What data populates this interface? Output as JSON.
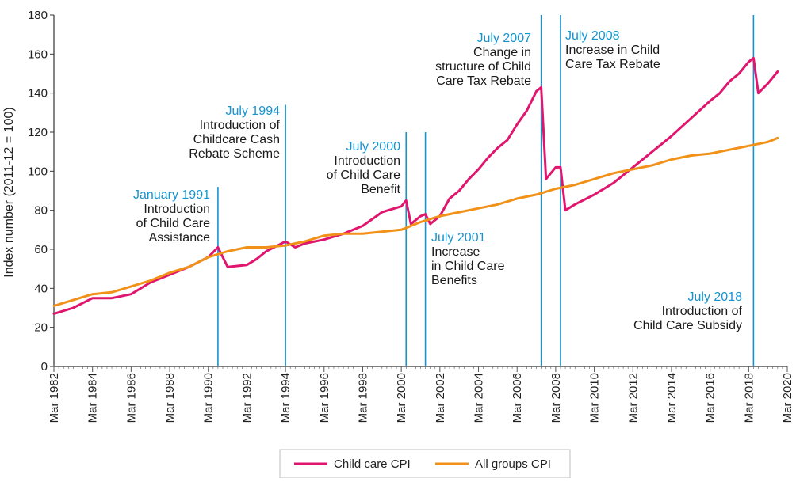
{
  "chart_data": {
    "type": "line",
    "title": "",
    "ylabel": "Index number (2011-12 = 100)",
    "xlabel": "",
    "ylim": [
      0,
      180
    ],
    "xlim": [
      "1982-03",
      "2020-03"
    ],
    "y_ticks": [
      "0",
      "20",
      "40",
      "60",
      "80",
      "100",
      "120",
      "140",
      "160",
      "180"
    ],
    "x_ticks": [
      "Mar 1982",
      "Mar 1984",
      "Mar 1986",
      "Mar 1988",
      "Mar 1990",
      "Mar 1992",
      "Mar 1994",
      "Mar 1996",
      "Mar 1998",
      "Mar 2000",
      "Mar 2002",
      "Mar 2004",
      "Mar 2006",
      "Mar 2008",
      "Mar 2010",
      "Mar 2012",
      "Mar 2014",
      "Mar 2016",
      "Mar 2018",
      "Mar 2020"
    ],
    "grid": false,
    "legend_position": "bottom",
    "series": [
      {
        "name": "Child care CPI",
        "color": "#e0166e",
        "points": [
          [
            "1982-03",
            27
          ],
          [
            "1983-03",
            30
          ],
          [
            "1984-03",
            35
          ],
          [
            "1985-03",
            35
          ],
          [
            "1986-03",
            37
          ],
          [
            "1987-03",
            43
          ],
          [
            "1988-03",
            47
          ],
          [
            "1989-03",
            51
          ],
          [
            "1990-03",
            56
          ],
          [
            "1990-09",
            61
          ],
          [
            "1991-03",
            51
          ],
          [
            "1992-03",
            52
          ],
          [
            "1992-09",
            55
          ],
          [
            "1993-03",
            59
          ],
          [
            "1994-03",
            64
          ],
          [
            "1994-09",
            61
          ],
          [
            "1995-03",
            63
          ],
          [
            "1996-03",
            65
          ],
          [
            "1997-03",
            68
          ],
          [
            "1998-03",
            72
          ],
          [
            "1999-03",
            79
          ],
          [
            "2000-03",
            82
          ],
          [
            "2000-06",
            85
          ],
          [
            "2000-09",
            73
          ],
          [
            "2001-03",
            77
          ],
          [
            "2001-06",
            78
          ],
          [
            "2001-09",
            73
          ],
          [
            "2002-03",
            77
          ],
          [
            "2002-09",
            86
          ],
          [
            "2003-03",
            90
          ],
          [
            "2003-09",
            96
          ],
          [
            "2004-03",
            101
          ],
          [
            "2004-09",
            107
          ],
          [
            "2005-03",
            112
          ],
          [
            "2005-09",
            116
          ],
          [
            "2006-03",
            124
          ],
          [
            "2006-09",
            131
          ],
          [
            "2007-03",
            141
          ],
          [
            "2007-06",
            143
          ],
          [
            "2007-09",
            96
          ],
          [
            "2008-03",
            102
          ],
          [
            "2008-06",
            102
          ],
          [
            "2008-09",
            80
          ],
          [
            "2009-03",
            83
          ],
          [
            "2010-03",
            88
          ],
          [
            "2011-03",
            94
          ],
          [
            "2012-03",
            102
          ],
          [
            "2013-03",
            110
          ],
          [
            "2014-03",
            118
          ],
          [
            "2015-03",
            127
          ],
          [
            "2016-03",
            136
          ],
          [
            "2016-09",
            140
          ],
          [
            "2017-03",
            146
          ],
          [
            "2017-09",
            150
          ],
          [
            "2018-03",
            156
          ],
          [
            "2018-06",
            158
          ],
          [
            "2018-09",
            140
          ],
          [
            "2019-03",
            145
          ],
          [
            "2019-09",
            151
          ]
        ]
      },
      {
        "name": "All groups CPI",
        "color": "#f29118",
        "points": [
          [
            "1982-03",
            31
          ],
          [
            "1983-03",
            34
          ],
          [
            "1984-03",
            37
          ],
          [
            "1985-03",
            38
          ],
          [
            "1986-03",
            41
          ],
          [
            "1987-03",
            44
          ],
          [
            "1988-03",
            48
          ],
          [
            "1989-03",
            51
          ],
          [
            "1990-03",
            56
          ],
          [
            "1991-03",
            59
          ],
          [
            "1992-03",
            61
          ],
          [
            "1993-03",
            61
          ],
          [
            "1994-03",
            62
          ],
          [
            "1995-03",
            64
          ],
          [
            "1996-03",
            67
          ],
          [
            "1997-03",
            68
          ],
          [
            "1998-03",
            68
          ],
          [
            "1999-03",
            69
          ],
          [
            "2000-03",
            70
          ],
          [
            "2001-03",
            74
          ],
          [
            "2002-03",
            77
          ],
          [
            "2003-03",
            79
          ],
          [
            "2004-03",
            81
          ],
          [
            "2005-03",
            83
          ],
          [
            "2006-03",
            86
          ],
          [
            "2007-03",
            88
          ],
          [
            "2008-03",
            91
          ],
          [
            "2009-03",
            93
          ],
          [
            "2010-03",
            96
          ],
          [
            "2011-03",
            99
          ],
          [
            "2012-03",
            101
          ],
          [
            "2013-03",
            103
          ],
          [
            "2014-03",
            106
          ],
          [
            "2015-03",
            108
          ],
          [
            "2016-03",
            109
          ],
          [
            "2017-03",
            111
          ],
          [
            "2018-03",
            113
          ],
          [
            "2019-03",
            115
          ],
          [
            "2019-09",
            117
          ]
        ]
      }
    ],
    "event_lines": {
      "color": "#1594cf",
      "events": [
        {
          "date": "1990-09",
          "top": 92
        },
        {
          "date": "1994-03",
          "top": 134
        },
        {
          "date": "2000-06",
          "top": 120
        },
        {
          "date": "2001-06",
          "top": 120
        },
        {
          "date": "2007-06",
          "top": 180
        },
        {
          "date": "2008-06",
          "top": 180
        },
        {
          "date": "2018-06",
          "top": 180
        }
      ]
    },
    "annotations": [
      {
        "title": "January 1991",
        "lines": [
          "Introduction",
          "of Child Care",
          "Assistance"
        ]
      },
      {
        "title": "July 1994",
        "lines": [
          "Introduction of",
          "Childcare Cash",
          "Rebate Scheme"
        ]
      },
      {
        "title": "July 2000",
        "lines": [
          "Introduction",
          "of Child Care",
          "Benefit"
        ]
      },
      {
        "title": "July 2001",
        "lines": [
          "Increase",
          "in Child Care",
          "Benefits"
        ]
      },
      {
        "title": "July 2007",
        "lines": [
          "Change in",
          "structure of  Child",
          "Care Tax Rebate"
        ]
      },
      {
        "title": "July 2008",
        "lines": [
          "Increase in Child",
          "Care Tax Rebate"
        ]
      },
      {
        "title": "July 2018",
        "lines": [
          "Introduction of",
          "Child Care Subsidy"
        ]
      }
    ],
    "annotation_title_color": "#1594cf"
  }
}
